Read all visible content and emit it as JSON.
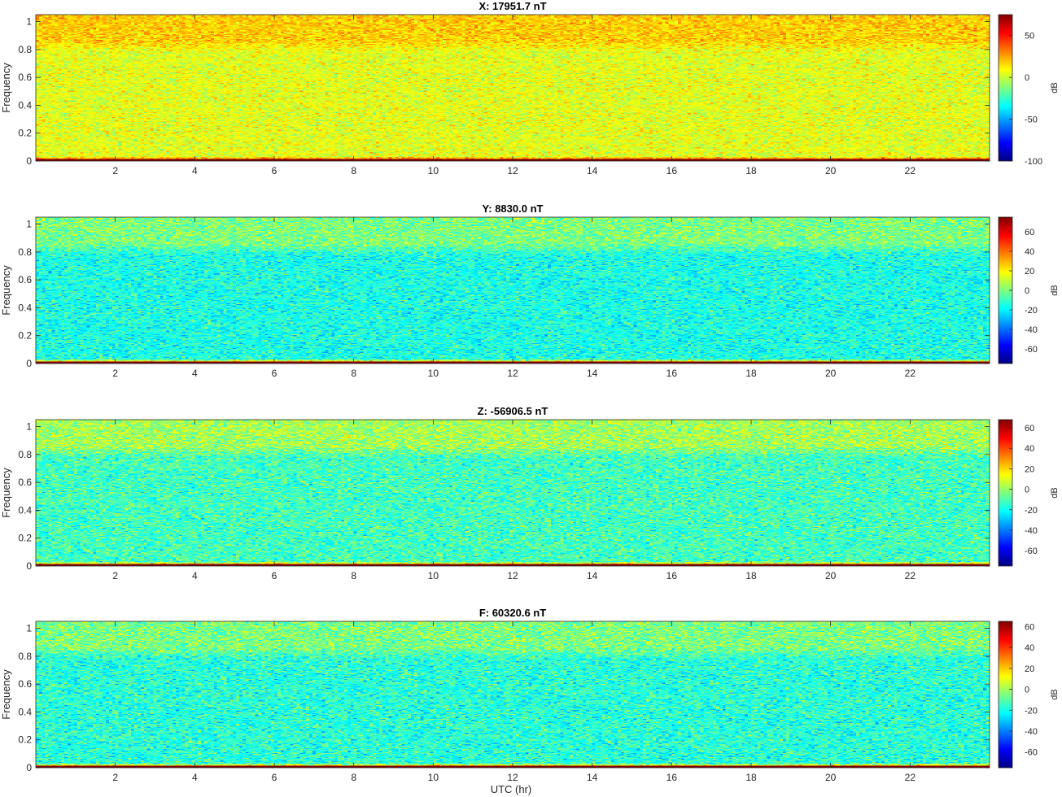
{
  "figure": {
    "xlabel": "UTC (hr)"
  },
  "chart_data": [
    {
      "type": "heatmap",
      "title": "X: 17951.7 nT",
      "ylabel": "Frequency",
      "xlabel": "",
      "xlim": [
        0,
        24
      ],
      "ylim": [
        0,
        1.05
      ],
      "x_ticks": [
        2,
        4,
        6,
        8,
        10,
        12,
        14,
        16,
        18,
        20,
        22
      ],
      "y_ticks": [
        0,
        0.2,
        0.4,
        0.6,
        0.8,
        1
      ],
      "colorbar": {
        "label": "dB",
        "range": [
          -100,
          75
        ],
        "ticks": [
          -100,
          -50,
          0,
          50
        ]
      },
      "colormap": "jet",
      "typical_levels_db": {
        "low_freq_line": 75,
        "background": 5,
        "high_freq_band": 18
      }
    },
    {
      "type": "heatmap",
      "title": "Y: 8830.0 nT",
      "ylabel": "Frequency",
      "xlabel": "",
      "xlim": [
        0,
        24
      ],
      "ylim": [
        0,
        1.05
      ],
      "x_ticks": [
        2,
        4,
        6,
        8,
        10,
        12,
        14,
        16,
        18,
        20,
        22
      ],
      "y_ticks": [
        0,
        0.2,
        0.4,
        0.6,
        0.8,
        1
      ],
      "colorbar": {
        "label": "dB",
        "range": [
          -75,
          75
        ],
        "ticks": [
          -60,
          -40,
          -20,
          0,
          20,
          40,
          60
        ]
      },
      "colormap": "jet",
      "typical_levels_db": {
        "low_freq_line": 75,
        "background": -15,
        "high_freq_band": 0
      }
    },
    {
      "type": "heatmap",
      "title": "Z: -56906.5 nT",
      "ylabel": "Frequency",
      "xlabel": "",
      "xlim": [
        0,
        24
      ],
      "ylim": [
        0,
        1.05
      ],
      "x_ticks": [
        2,
        4,
        6,
        8,
        10,
        12,
        14,
        16,
        18,
        20,
        22
      ],
      "y_ticks": [
        0,
        0.2,
        0.4,
        0.6,
        0.8,
        1
      ],
      "colorbar": {
        "label": "dB",
        "range": [
          -75,
          68
        ],
        "ticks": [
          -60,
          -40,
          -20,
          0,
          20,
          40,
          60
        ]
      },
      "colormap": "jet",
      "typical_levels_db": {
        "low_freq_line": 68,
        "background": -12,
        "high_freq_band": 2
      }
    },
    {
      "type": "heatmap",
      "title": "F: 60320.6 nT",
      "ylabel": "Frequency",
      "xlabel": "UTC (hr)",
      "xlim": [
        0,
        24
      ],
      "ylim": [
        0,
        1.05
      ],
      "x_ticks": [
        2,
        4,
        6,
        8,
        10,
        12,
        14,
        16,
        18,
        20,
        22
      ],
      "y_ticks": [
        0,
        0.2,
        0.4,
        0.6,
        0.8,
        1
      ],
      "colorbar": {
        "label": "dB",
        "range": [
          -75,
          65
        ],
        "ticks": [
          -60,
          -40,
          -20,
          0,
          20,
          40,
          60
        ]
      },
      "colormap": "jet",
      "typical_levels_db": {
        "low_freq_line": 65,
        "background": -17,
        "high_freq_band": -5
      }
    }
  ]
}
